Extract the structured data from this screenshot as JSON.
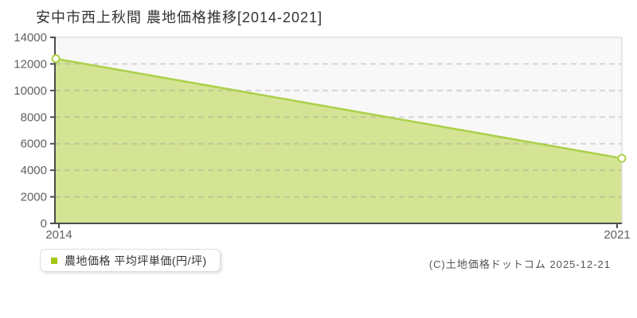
{
  "header": {
    "title": "安中市西上秋間 農地価格推移[2014-2021]"
  },
  "legend": {
    "label": "農地価格 平均坪単価(円/坪)",
    "marker_color": "#a3c813"
  },
  "footer": {
    "copyright": "(C)土地価格ドットコム 2025-12-21"
  },
  "chart_data": {
    "type": "area",
    "title": "安中市西上秋間 農地価格推移[2014-2021]",
    "x": [
      2014,
      2021
    ],
    "series": [
      {
        "name": "農地価格 平均坪単価(円/坪)",
        "values": [
          12400,
          4900
        ]
      }
    ],
    "xlabel": "",
    "ylabel": "",
    "xlim": [
      2014,
      2021
    ],
    "ylim": [
      0,
      14000
    ],
    "yticks": [
      0,
      2000,
      4000,
      6000,
      8000,
      10000,
      12000,
      14000
    ],
    "xticks": [
      2014,
      2021
    ],
    "grid": "horizontal-dashed",
    "legend_position": "bottom-left",
    "colors": {
      "area_fill": "#d4e494",
      "line": "#abd04a",
      "marker_fill": "#ffffff",
      "marker_stroke": "#abd04a",
      "plot_background": "#f8f8f8",
      "plot_border": "#dddddd",
      "grid_line": "#9a9a9a",
      "axis": "#4d4d4d",
      "tick_label": "#606060"
    }
  }
}
